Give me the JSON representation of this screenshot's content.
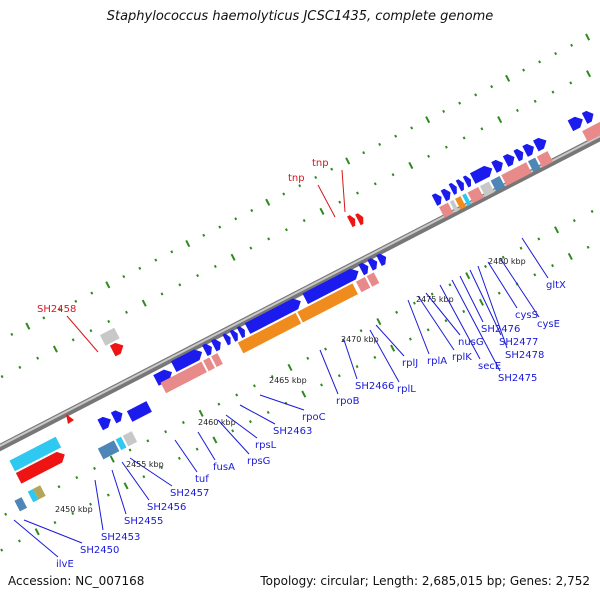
{
  "title": "Staphylococcus haemolyticus JCSC1435, complete genome",
  "footer": {
    "accession": "Accession: NC_007168",
    "summary": "Topology: circular; Length: 2,685,015 bp; Genes: 2,752"
  },
  "colors": {
    "blue_gene": "#1b1bee",
    "red_gene": "#ee1414",
    "pink_gene": "#e88a8a",
    "orange_gene": "#f08c1e",
    "cyan_gene": "#2ec8f0",
    "steel_gene": "#4f86b8",
    "olive_gene": "#b4a55a",
    "grey_gene": "#c8c8c8",
    "label_blue": "#1a1ad8",
    "label_red": "#d8161b",
    "tick_green": "#2f8a1f",
    "backbone": "#777777"
  },
  "kbp_labels": [
    "2450 kbp",
    "2455 kbp",
    "2460 kbp",
    "2465 kbp",
    "2470 kbp",
    "2475 kbp",
    "2480 kbp"
  ],
  "gene_labels": [
    {
      "text": "ilvE",
      "color": "blue"
    },
    {
      "text": "SH2450",
      "color": "blue"
    },
    {
      "text": "SH2453",
      "color": "blue"
    },
    {
      "text": "SH2455",
      "color": "blue"
    },
    {
      "text": "SH2456",
      "color": "blue"
    },
    {
      "text": "SH2457",
      "color": "blue"
    },
    {
      "text": "tuf",
      "color": "blue"
    },
    {
      "text": "fusA",
      "color": "blue"
    },
    {
      "text": "rpsG",
      "color": "blue"
    },
    {
      "text": "rpsL",
      "color": "blue"
    },
    {
      "text": "SH2463",
      "color": "blue"
    },
    {
      "text": "rpoC",
      "color": "blue"
    },
    {
      "text": "rpoB",
      "color": "blue"
    },
    {
      "text": "SH2466",
      "color": "blue"
    },
    {
      "text": "rplL",
      "color": "blue"
    },
    {
      "text": "rplJ",
      "color": "blue"
    },
    {
      "text": "rplA",
      "color": "blue"
    },
    {
      "text": "rplK",
      "color": "blue"
    },
    {
      "text": "nusG",
      "color": "blue"
    },
    {
      "text": "secE",
      "color": "blue"
    },
    {
      "text": "SH2475",
      "color": "blue"
    },
    {
      "text": "SH2476",
      "color": "blue"
    },
    {
      "text": "SH2477",
      "color": "blue"
    },
    {
      "text": "SH2478",
      "color": "blue"
    },
    {
      "text": "cysS",
      "color": "blue"
    },
    {
      "text": "cysE",
      "color": "blue"
    },
    {
      "text": "gltX",
      "color": "blue"
    },
    {
      "text": "SH2458",
      "color": "red"
    },
    {
      "text": "tnp",
      "color": "red"
    },
    {
      "text": "tnp",
      "color": "red"
    }
  ]
}
